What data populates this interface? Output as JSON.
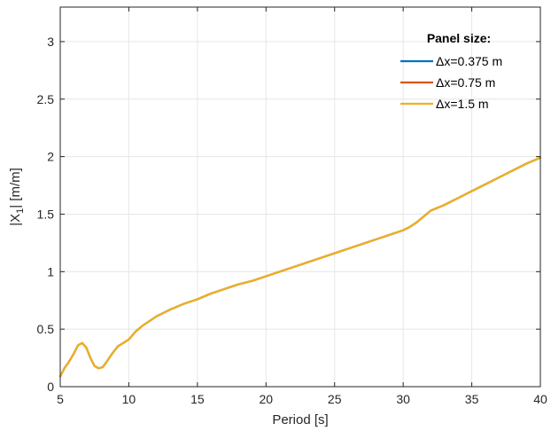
{
  "chart_data": {
    "type": "line",
    "xlabel": "Period [s]",
    "ylabel_main": "|X",
    "ylabel_sub": "1",
    "ylabel_rest": "| [m/m]",
    "xlim": [
      5,
      40
    ],
    "ylim": [
      0,
      3.3
    ],
    "xticks": [
      5,
      10,
      15,
      20,
      25,
      30,
      35,
      40
    ],
    "xtick_labels": [
      "5",
      "10",
      "15",
      "20",
      "25",
      "30",
      "35",
      "40"
    ],
    "yticks": [
      0,
      0.5,
      1,
      1.5,
      2,
      2.5,
      3
    ],
    "ytick_labels": [
      "0",
      "0.5",
      "1",
      "1.5",
      "2",
      "2.5",
      "3"
    ],
    "grid": true,
    "legend": {
      "title": "Panel size:",
      "position": "top-right"
    },
    "series": [
      {
        "name": "Δx=0.375 m",
        "color": "#0072BD",
        "x": [
          5,
          5.3,
          5.6,
          6.0,
          6.3,
          6.6,
          6.9,
          7.2,
          7.5,
          7.8,
          8.1,
          8.4,
          8.8,
          9.2,
          9.6,
          10.0,
          10.5,
          11,
          12,
          13,
          14,
          15,
          16,
          17,
          18,
          19,
          20,
          21,
          22,
          23,
          24,
          25,
          26,
          27,
          28,
          29,
          30,
          30.5,
          31,
          31.5,
          32,
          33,
          34,
          35,
          36,
          37,
          38,
          39,
          40
        ],
        "y": [
          0.09,
          0.16,
          0.21,
          0.29,
          0.36,
          0.38,
          0.34,
          0.25,
          0.18,
          0.16,
          0.17,
          0.22,
          0.29,
          0.35,
          0.38,
          0.41,
          0.48,
          0.53,
          0.61,
          0.67,
          0.72,
          0.76,
          0.81,
          0.85,
          0.89,
          0.92,
          0.96,
          1.0,
          1.04,
          1.08,
          1.12,
          1.16,
          1.2,
          1.24,
          1.28,
          1.32,
          1.36,
          1.39,
          1.43,
          1.48,
          1.53,
          1.58,
          1.64,
          1.7,
          1.76,
          1.82,
          1.88,
          1.94,
          1.99
        ]
      },
      {
        "name": "Δx=0.75 m",
        "color": "#D95319",
        "x": [
          5,
          5.3,
          5.6,
          6.0,
          6.3,
          6.6,
          6.9,
          7.2,
          7.5,
          7.8,
          8.1,
          8.4,
          8.8,
          9.2,
          9.6,
          10.0,
          10.5,
          11,
          12,
          13,
          14,
          15,
          16,
          17,
          18,
          19,
          20,
          21,
          22,
          23,
          24,
          25,
          26,
          27,
          28,
          29,
          30,
          30.5,
          31,
          31.5,
          32,
          33,
          34,
          35,
          36,
          37,
          38,
          39,
          40
        ],
        "y": [
          0.09,
          0.16,
          0.21,
          0.29,
          0.36,
          0.38,
          0.34,
          0.25,
          0.18,
          0.16,
          0.17,
          0.22,
          0.29,
          0.35,
          0.38,
          0.41,
          0.48,
          0.53,
          0.61,
          0.67,
          0.72,
          0.76,
          0.81,
          0.85,
          0.89,
          0.92,
          0.96,
          1.0,
          1.04,
          1.08,
          1.12,
          1.16,
          1.2,
          1.24,
          1.28,
          1.32,
          1.36,
          1.39,
          1.43,
          1.48,
          1.53,
          1.58,
          1.64,
          1.7,
          1.76,
          1.82,
          1.88,
          1.94,
          1.99
        ]
      },
      {
        "name": "Δx=1.5 m",
        "color": "#EDB120",
        "x": [
          5,
          5.3,
          5.6,
          6.0,
          6.3,
          6.6,
          6.9,
          7.2,
          7.5,
          7.8,
          8.1,
          8.4,
          8.8,
          9.2,
          9.6,
          10.0,
          10.5,
          11,
          12,
          13,
          14,
          15,
          16,
          17,
          18,
          19,
          20,
          21,
          22,
          23,
          24,
          25,
          26,
          27,
          28,
          29,
          30,
          30.5,
          31,
          31.5,
          32,
          33,
          34,
          35,
          36,
          37,
          38,
          39,
          40
        ],
        "y": [
          0.09,
          0.16,
          0.21,
          0.29,
          0.36,
          0.38,
          0.34,
          0.25,
          0.18,
          0.16,
          0.17,
          0.22,
          0.29,
          0.35,
          0.38,
          0.41,
          0.48,
          0.53,
          0.61,
          0.67,
          0.72,
          0.76,
          0.81,
          0.85,
          0.89,
          0.92,
          0.96,
          1.0,
          1.04,
          1.08,
          1.12,
          1.16,
          1.2,
          1.24,
          1.28,
          1.32,
          1.36,
          1.39,
          1.43,
          1.48,
          1.53,
          1.58,
          1.64,
          1.7,
          1.76,
          1.82,
          1.88,
          1.94,
          1.99
        ]
      }
    ]
  }
}
